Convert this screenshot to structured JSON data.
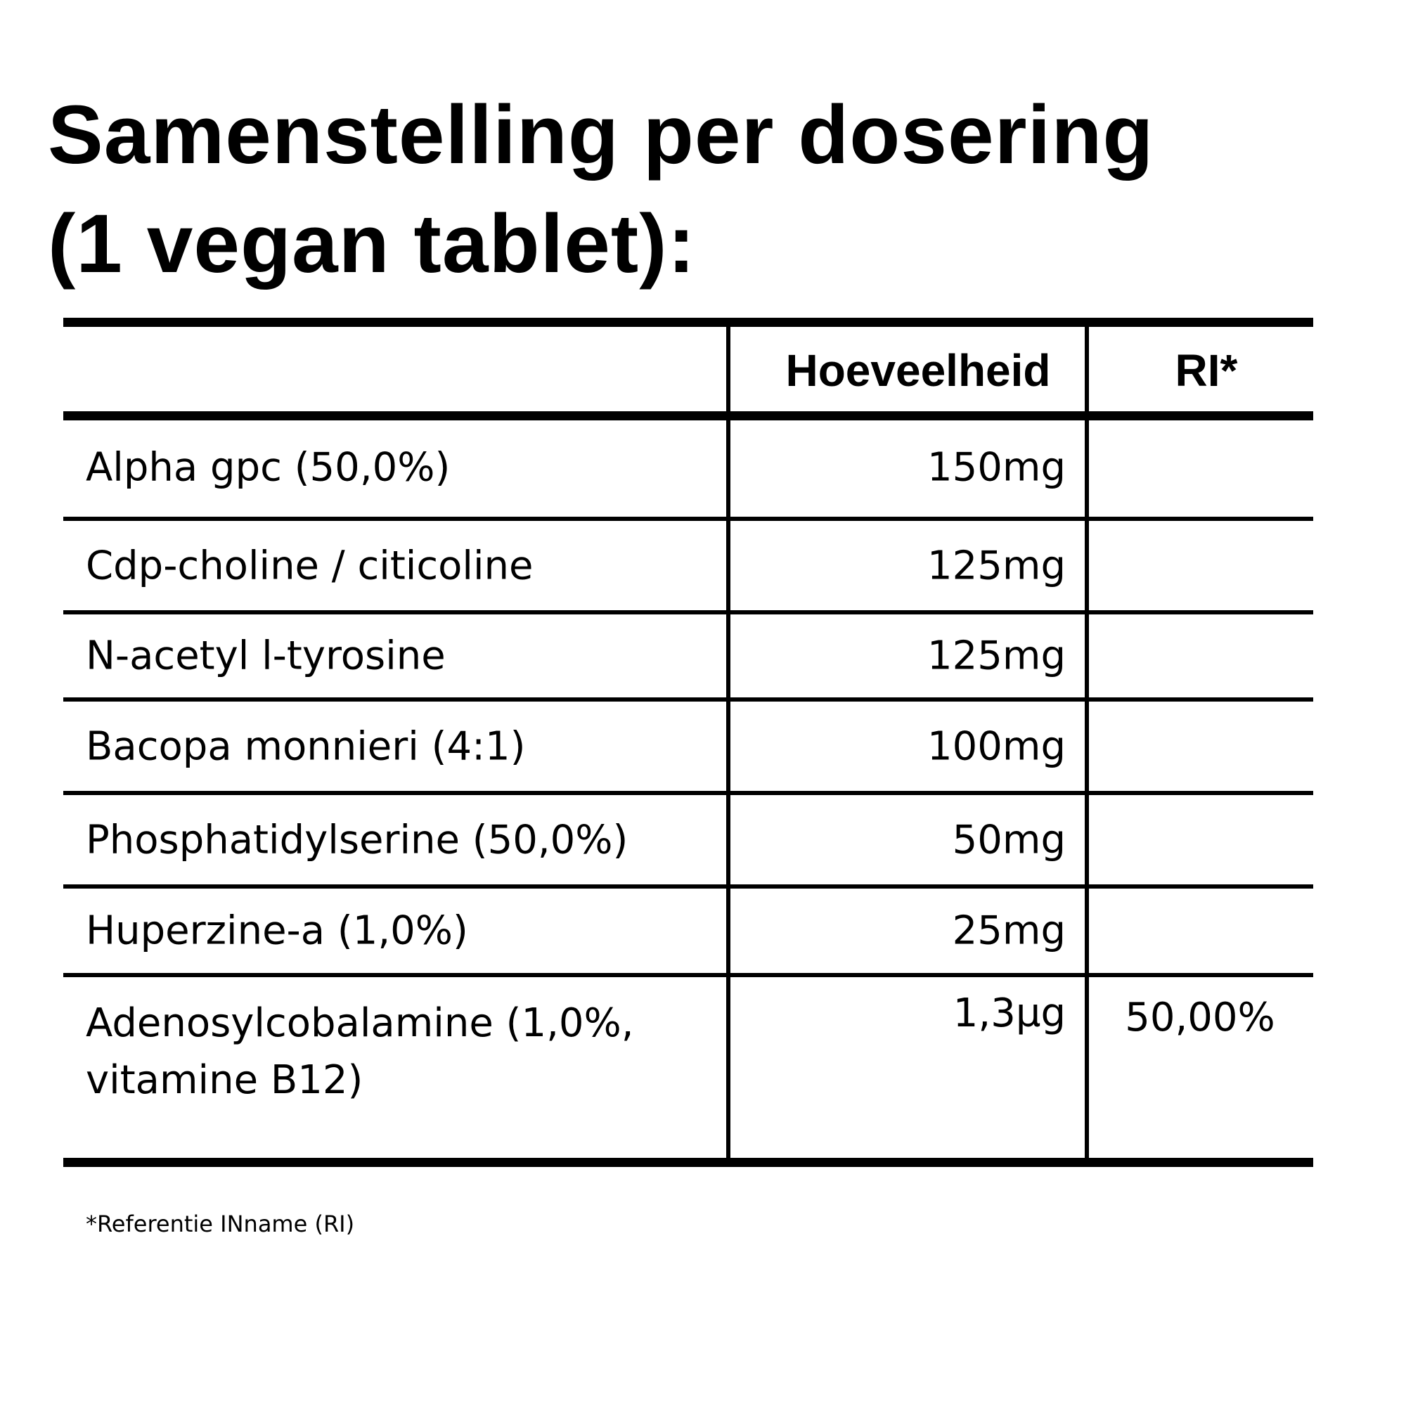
{
  "title_lines": [
    "Samenstelling per dosering",
    "(1 vegan tablet):"
  ],
  "table": {
    "header": [
      "Hoeveelheid",
      "RI*"
    ],
    "rows": [
      {
        "name": "Alpha gpc (50,0%)",
        "amount": "150mg"
      },
      {
        "name": "Cdp-choline / citicoline",
        "amount": "125mg"
      },
      {
        "name": "N-acetyl l-tyrosine",
        "amount": "125mg"
      },
      {
        "name": "Bacopa monnieri (4:1)",
        "amount": "100mg"
      },
      {
        "name": "Phosphatidylserine (50,0%)",
        "amount": "50mg"
      },
      {
        "name": "Huperzine-a (1,0%)",
        "amount": "25mg"
      },
      {
        "name": "Adenosylcobalamine (1,0%, vitamine B12)",
        "amount": "1,3µg",
        "ri": "50,00%"
      }
    ]
  },
  "footnote": "*Referentie INname (RI)"
}
